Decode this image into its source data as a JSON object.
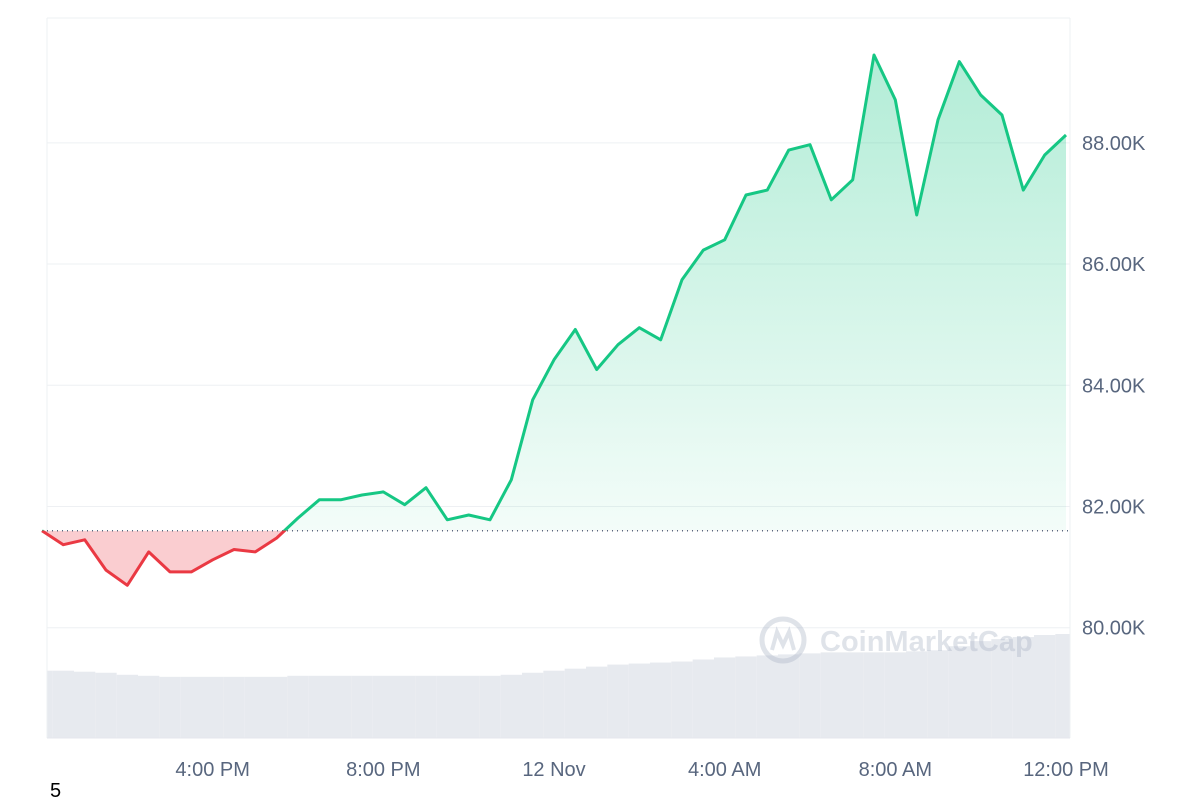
{
  "chart_data": {
    "type": "line",
    "categories": [
      null,
      null,
      null,
      null,
      null,
      null,
      null,
      null,
      "4:00 PM",
      null,
      null,
      null,
      null,
      null,
      null,
      null,
      "8:00 PM",
      null,
      null,
      null,
      null,
      null,
      null,
      null,
      "12 Nov",
      null,
      null,
      null,
      null,
      null,
      null,
      null,
      "4:00 AM",
      null,
      null,
      null,
      null,
      null,
      null,
      null,
      "8:00 AM",
      null,
      null,
      null,
      null,
      null,
      null,
      null,
      "12:00 PM"
    ],
    "values": [
      81600,
      81370,
      81450,
      80950,
      80700,
      81250,
      80920,
      80920,
      81120,
      81290,
      81250,
      81480,
      81810,
      82110,
      82110,
      82190,
      82240,
      82030,
      82310,
      81780,
      81860,
      81780,
      82440,
      83760,
      84420,
      84920,
      84260,
      84670,
      84950,
      84750,
      85740,
      86230,
      86400,
      87140,
      87220,
      87880,
      87970,
      87060,
      87390,
      89450,
      88710,
      86810,
      88380,
      89340,
      88790,
      88460,
      87220,
      87800,
      88130
    ],
    "volume": [
      66,
      66,
      65,
      64,
      62,
      61,
      60,
      60,
      60,
      60,
      60,
      60,
      61,
      61,
      61,
      61,
      61,
      61,
      61,
      61,
      61,
      61,
      62,
      64,
      66,
      68,
      70,
      72,
      73,
      74,
      75,
      77,
      79,
      80,
      81,
      82,
      83,
      84,
      84,
      84,
      84,
      85,
      86,
      90,
      95,
      97,
      99,
      101,
      102
    ],
    "baseline": 81600,
    "up_color": "#16c784",
    "down_color": "#ea3943",
    "volume_color": "#e7eaef",
    "ylim": [
      78180,
      90060
    ],
    "yticks": [
      {
        "value": 80000,
        "label": "80.00K"
      },
      {
        "value": 82000,
        "label": "82.00K"
      },
      {
        "value": 84000,
        "label": "84.00K"
      },
      {
        "value": 86000,
        "label": "86.00K"
      },
      {
        "value": 88000,
        "label": "88.00K"
      }
    ],
    "grid": true,
    "watermark": "CoinMarketCap",
    "footnote": "5"
  }
}
